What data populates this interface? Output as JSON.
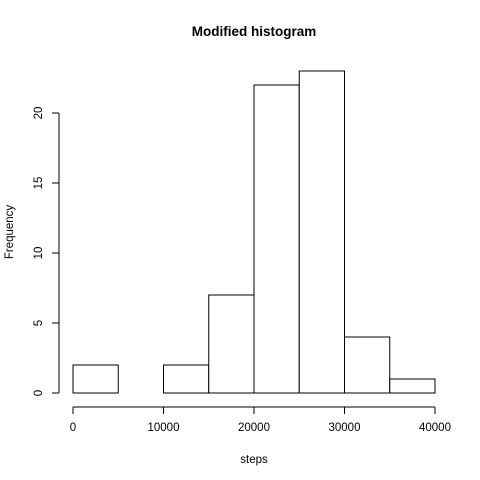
{
  "chart_data": {
    "type": "bar",
    "title": "Modified histogram",
    "xlabel": "steps",
    "ylabel": "Frequency",
    "bins": [
      {
        "from": 0,
        "to": 5000,
        "count": 2
      },
      {
        "from": 5000,
        "to": 10000,
        "count": 0
      },
      {
        "from": 10000,
        "to": 15000,
        "count": 2
      },
      {
        "from": 15000,
        "to": 20000,
        "count": 7
      },
      {
        "from": 20000,
        "to": 25000,
        "count": 22
      },
      {
        "from": 25000,
        "to": 30000,
        "count": 23
      },
      {
        "from": 30000,
        "to": 35000,
        "count": 4
      },
      {
        "from": 35000,
        "to": 40000,
        "count": 1
      }
    ],
    "xlim": [
      0,
      40000
    ],
    "ylim": [
      0,
      23
    ],
    "x_ticks": [
      0,
      10000,
      20000,
      30000,
      40000
    ],
    "y_ticks": [
      0,
      5,
      10,
      15,
      20
    ],
    "grid": false,
    "legend": "none",
    "colors": {
      "bar_fill": "#ffffff",
      "bar_stroke": "#000000"
    }
  }
}
